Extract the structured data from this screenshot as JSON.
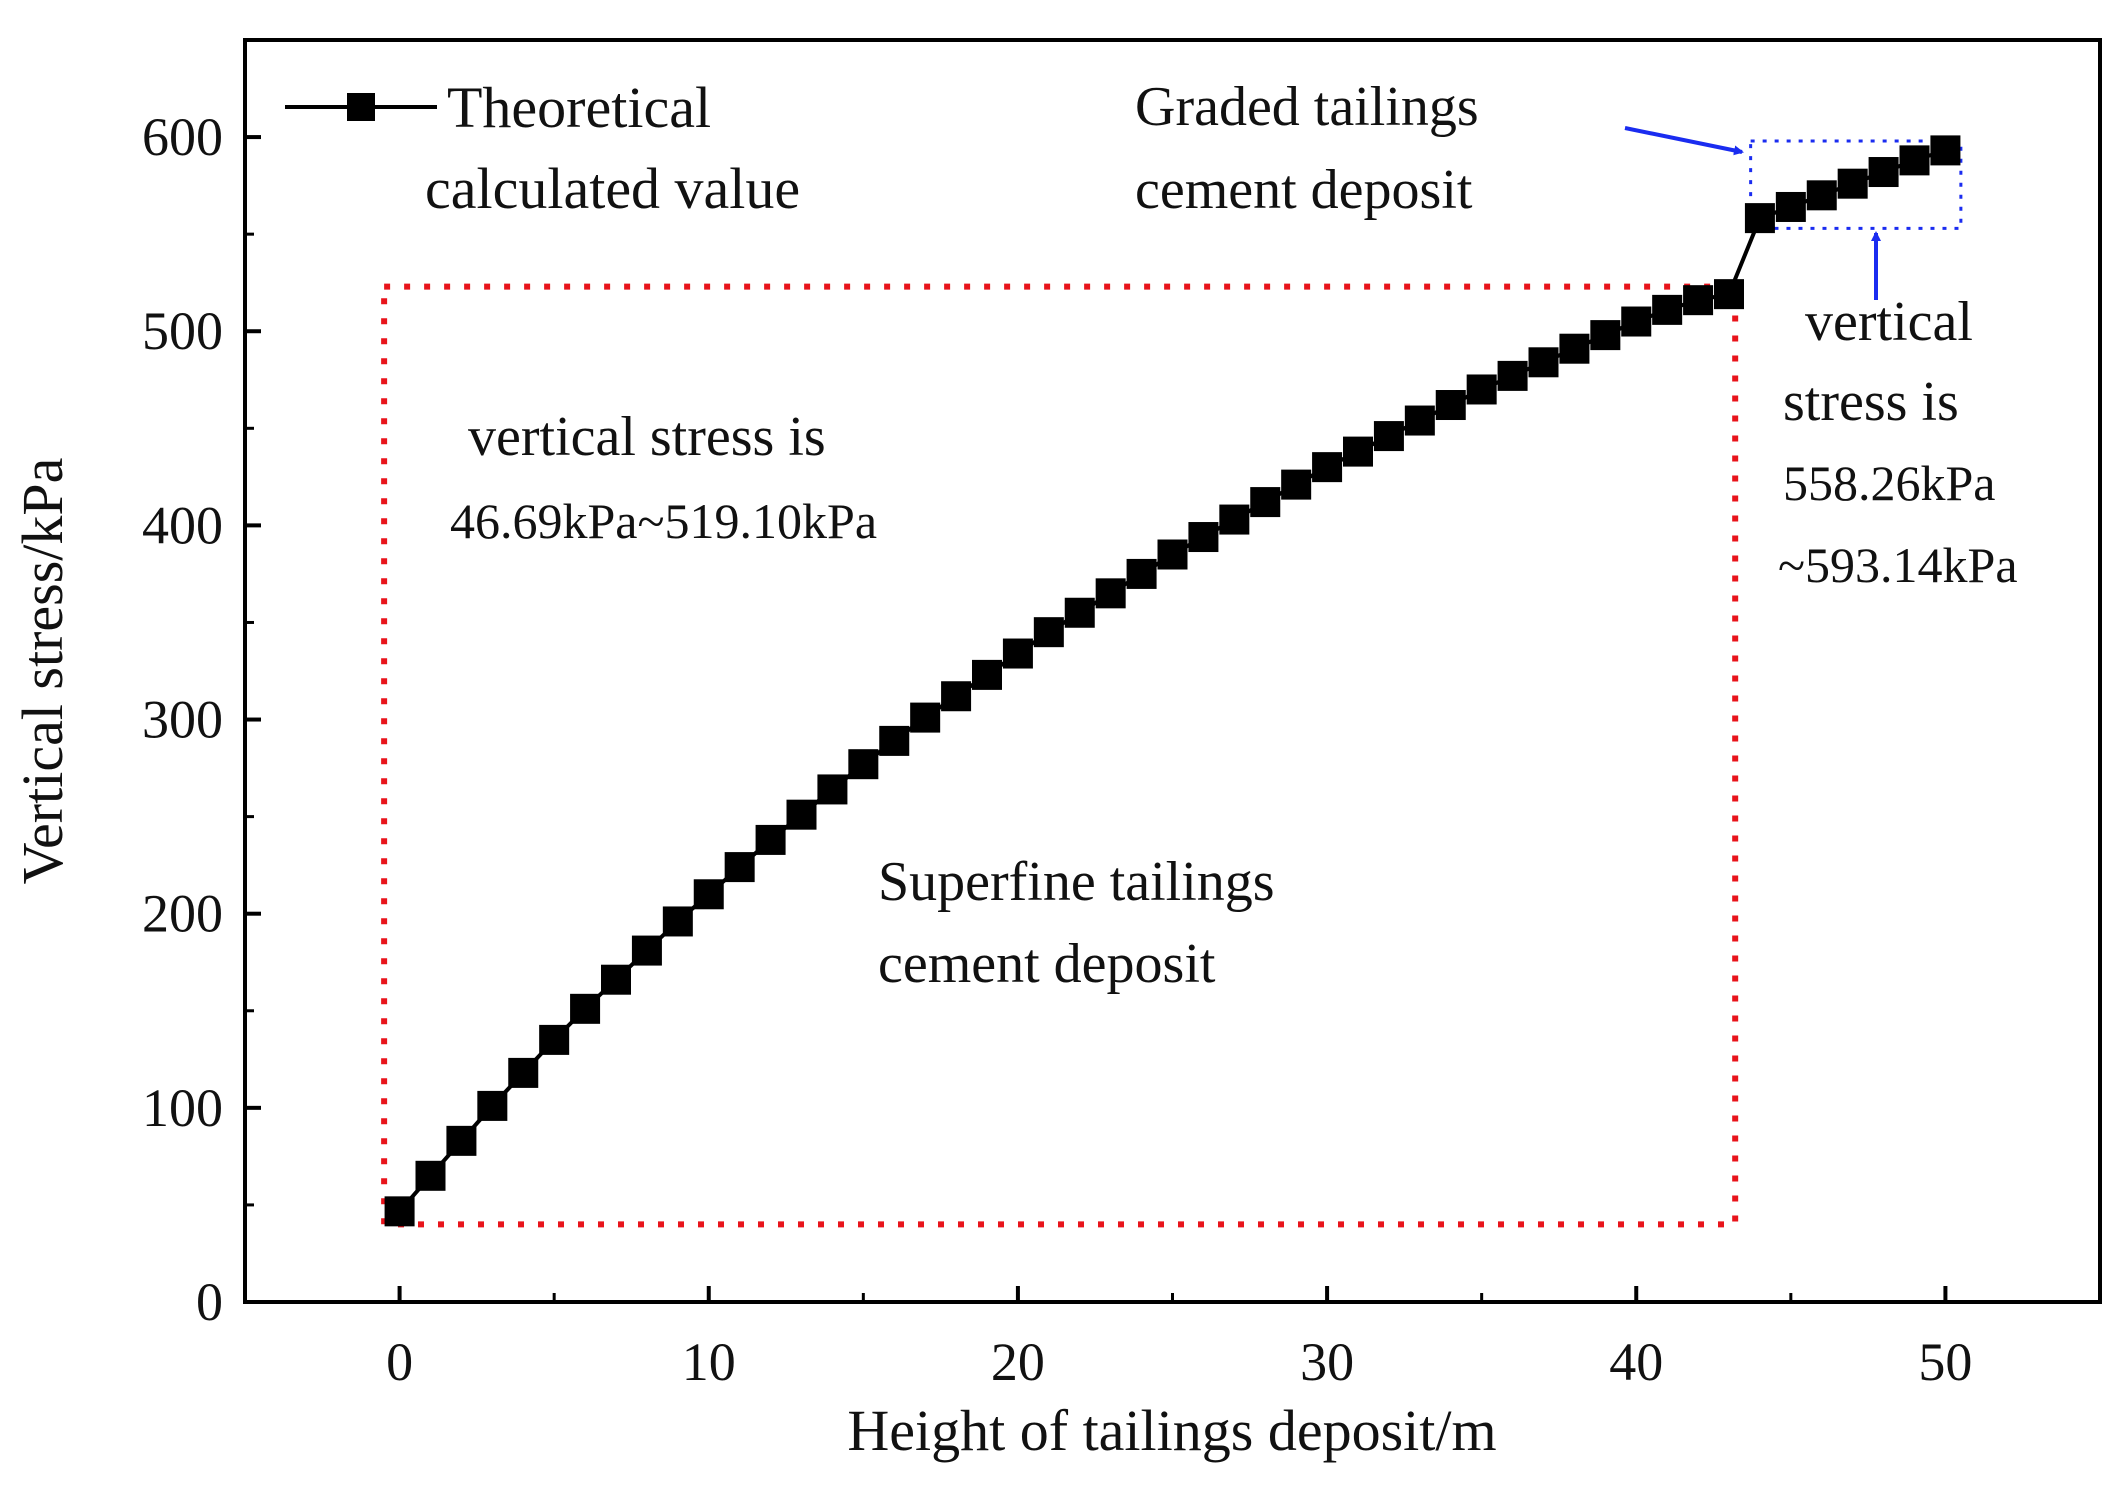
{
  "chart_data": {
    "type": "line",
    "xlabel": "Height of tailings deposit/m",
    "ylabel": "Vertical stress/kPa",
    "xlim": [
      -5,
      55
    ],
    "ylim": [
      0,
      650
    ],
    "xticks": [
      0,
      10,
      20,
      30,
      40,
      50
    ],
    "yticks": [
      0,
      100,
      200,
      300,
      400,
      500,
      600
    ],
    "xtick_labels": [
      "0",
      "10",
      "20",
      "30",
      "40",
      "50"
    ],
    "ytick_labels": [
      "0",
      "100",
      "200",
      "300",
      "400",
      "500",
      "600"
    ],
    "legend": {
      "position": "top-left",
      "label_line1": "Theoretical",
      "label_line2": "calculated value"
    },
    "series": [
      {
        "name": "Theoretical calculated value",
        "color": "#000000",
        "marker": "square",
        "x": [
          0,
          1,
          2,
          3,
          4,
          5,
          6,
          7,
          8,
          9,
          10,
          11,
          12,
          13,
          14,
          15,
          16,
          17,
          18,
          19,
          20,
          21,
          22,
          23,
          24,
          25,
          26,
          27,
          28,
          29,
          30,
          31,
          32,
          33,
          34,
          35,
          36,
          37,
          38,
          39,
          40,
          41,
          42,
          43,
          44,
          45,
          46,
          47,
          48,
          49,
          50
        ],
        "y": [
          46.69,
          65,
          83,
          101,
          118,
          135,
          151,
          166,
          181,
          196,
          210,
          224,
          238,
          251,
          264,
          277,
          289,
          301,
          312,
          323,
          334,
          345,
          355,
          365,
          375,
          385,
          394,
          403,
          412,
          421,
          430,
          438,
          446,
          454,
          462,
          470,
          477,
          484,
          491,
          498,
          505,
          511,
          516,
          519.1,
          558.26,
          564,
          570,
          576,
          582,
          588,
          593.14
        ]
      }
    ],
    "regions": [
      {
        "name": "superfine",
        "color": "#e8141b",
        "x_range": [
          -0.5,
          43.2
        ],
        "y_range": [
          40,
          523
        ]
      },
      {
        "name": "graded",
        "color": "#1a2cf0",
        "x_range": [
          43.7,
          50.5
        ],
        "y_range": [
          553,
          598
        ]
      }
    ],
    "annotations": {
      "superfine_range_line1": "vertical stress is",
      "superfine_range_line2": "46.69kPa~519.10kPa",
      "superfine_label_line1": "Superfine tailings",
      "superfine_label_line2": "cement deposit",
      "graded_label_line1": "Graded tailings",
      "graded_label_line2": "cement deposit",
      "graded_range_line1": "vertical",
      "graded_range_line2": "stress is",
      "graded_range_line3": "558.26kPa",
      "graded_range_line4": "~593.14kPa"
    },
    "arrow_color": "#1a2cf0"
  }
}
